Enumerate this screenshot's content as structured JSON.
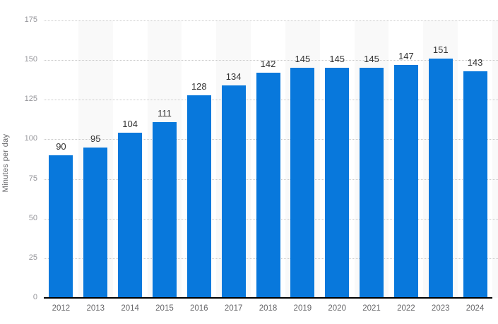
{
  "chart_data": {
    "type": "bar",
    "title": "",
    "ylabel": "Minutes per day",
    "xlabel": "",
    "categories": [
      "2012",
      "2013",
      "2014",
      "2015",
      "2016",
      "2017",
      "2018",
      "2019",
      "2020",
      "2021",
      "2022",
      "2023",
      "2024"
    ],
    "values": [
      90,
      95,
      104,
      111,
      128,
      134,
      142,
      145,
      145,
      145,
      147,
      151,
      143
    ],
    "value_labels": [
      "90",
      "95",
      "104",
      "111",
      "128",
      "134",
      "142",
      "145",
      "145",
      "145",
      "147",
      "151",
      "143"
    ],
    "y_ticks": [
      0,
      25,
      50,
      75,
      100,
      125,
      150,
      175
    ],
    "y_tick_labels": [
      "0",
      "25",
      "50",
      "75",
      "100",
      "125",
      "150",
      "175"
    ],
    "ylim": [
      0,
      175
    ],
    "grid": "horizontal-dotted",
    "legend": "none",
    "colors": {
      "bar": "#0878DC",
      "stripe": "#f9f9f9",
      "gridline": "#c9c9c9",
      "axis_line": "#000000",
      "value_label": "#333333",
      "y_tick_label": "#96969b",
      "x_tick_label": "#666669",
      "y_axis_title": "#666669"
    },
    "layout_hints": {
      "striped_category_indices": [
        1,
        3,
        5,
        7,
        9,
        11
      ],
      "partial_right_stripe": true
    }
  }
}
